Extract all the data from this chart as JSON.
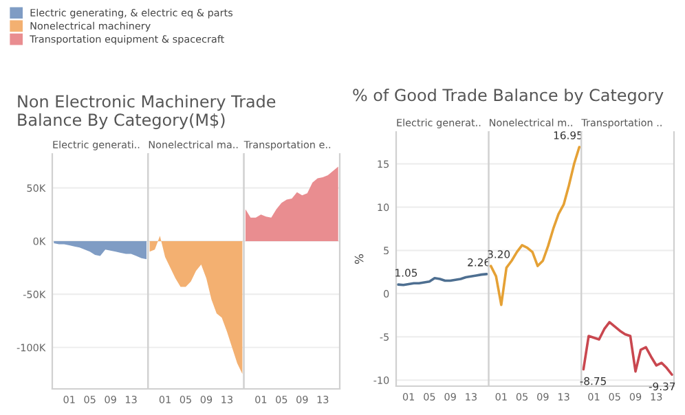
{
  "chart_data": [
    {
      "type": "area",
      "title": "Non Electronic Machinery Trade Balance By Category(M$)",
      "subtitle": "Electric generati..",
      "legend": "top",
      "grid": "y",
      "x": [
        1998,
        1999,
        2000,
        2001,
        2002,
        2003,
        2004,
        2005,
        2006,
        2007,
        2008,
        2009,
        2010,
        2011,
        2012,
        2013,
        2014,
        2015,
        2016
      ],
      "series": [
        {
          "name": "Electric generating, & electric eq & parts",
          "color": "#7f9cc4",
          "values": [
            -2000,
            -3000,
            -3000,
            -4000,
            -5000,
            -6000,
            -8000,
            -10000,
            -13000,
            -14000,
            -8000,
            -9000,
            -10000,
            -11000,
            -12000,
            -12000,
            -14000,
            -16000,
            -17000
          ]
        }
      ],
      "xlim": [
        1997.7,
        2016.3
      ],
      "xticks": [
        {
          "value": 2001,
          "label": "01"
        },
        {
          "value": 2005,
          "label": "05"
        },
        {
          "value": 2009,
          "label": "09"
        },
        {
          "value": 2013,
          "label": "13"
        }
      ],
      "ylim": [
        -139000,
        82000
      ],
      "yticks": [
        {
          "value": -100000,
          "label": "-100K"
        },
        {
          "value": -50000,
          "label": "-50K"
        },
        {
          "value": 0,
          "label": "0K"
        },
        {
          "value": 50000,
          "label": "50K"
        }
      ]
    },
    {
      "type": "area",
      "subtitle": "Nonelectrical ma..",
      "grid": "y",
      "tick_labels": "x",
      "x": [
        1998,
        1999,
        2000,
        2001,
        2002,
        2003,
        2004,
        2005,
        2006,
        2007,
        2008,
        2009,
        2010,
        2011,
        2012,
        2013,
        2014,
        2015,
        2016
      ],
      "series": [
        {
          "name": "Nonelectrical machinery",
          "color": "#f3b071",
          "values": [
            -10000,
            -8000,
            5000,
            -15000,
            -25000,
            -35000,
            -43000,
            -43000,
            -38000,
            -28000,
            -22000,
            -35000,
            -55000,
            -68000,
            -72000,
            -85000,
            -100000,
            -115000,
            -125000
          ]
        }
      ],
      "xlim": [
        1997.7,
        2016.3
      ],
      "xticks": [
        {
          "value": 2001,
          "label": "01"
        },
        {
          "value": 2005,
          "label": "05"
        },
        {
          "value": 2009,
          "label": "09"
        },
        {
          "value": 2013,
          "label": "13"
        }
      ],
      "ylim": [
        -139000,
        82000
      ],
      "yticks": [
        {
          "value": -100000,
          "label": null
        },
        {
          "value": -50000,
          "label": null
        },
        {
          "value": 0,
          "label": null
        },
        {
          "value": 50000,
          "label": null
        }
      ]
    },
    {
      "type": "area",
      "subtitle": "Transportation e..",
      "grid": "y",
      "tick_labels": "x",
      "x": [
        1998,
        1999,
        2000,
        2001,
        2002,
        2003,
        2004,
        2005,
        2006,
        2007,
        2008,
        2009,
        2010,
        2011,
        2012,
        2013,
        2014,
        2015,
        2016
      ],
      "series": [
        {
          "name": "Transportation equipment & spacecraft",
          "color": "#e98d90",
          "values": [
            30000,
            22000,
            22000,
            25000,
            23000,
            22000,
            30000,
            36000,
            39000,
            40000,
            46000,
            43000,
            45000,
            55000,
            59000,
            60000,
            62000,
            66000,
            70000
          ]
        }
      ],
      "xlim": [
        1997.7,
        2016.3
      ],
      "xticks": [
        {
          "value": 2001,
          "label": "01"
        },
        {
          "value": 2005,
          "label": "05"
        },
        {
          "value": 2009,
          "label": "09"
        },
        {
          "value": 2013,
          "label": "13"
        }
      ],
      "ylim": [
        -139000,
        82000
      ],
      "yticks": [
        {
          "value": -100000,
          "label": null
        },
        {
          "value": -50000,
          "label": null
        },
        {
          "value": 0,
          "label": null
        },
        {
          "value": 50000,
          "label": null
        }
      ]
    },
    {
      "type": "line",
      "title": "% of Good Trade Balance by Category",
      "subtitle": "Electric generat..",
      "ylabel": "%",
      "grid": "y",
      "x": [
        1999,
        2000,
        2001,
        2002,
        2003,
        2004,
        2005,
        2006,
        2007,
        2008,
        2009,
        2010,
        2011,
        2012,
        2013,
        2014,
        2015,
        2016
      ],
      "series": [
        {
          "color": "#4e6f91",
          "values": [
            1.05,
            1.0,
            1.1,
            1.2,
            1.2,
            1.3,
            1.4,
            1.8,
            1.7,
            1.5,
            1.5,
            1.6,
            1.7,
            1.9,
            2.0,
            2.1,
            2.2,
            2.26
          ],
          "value_labels": [
            "1.05",
            null,
            null,
            null,
            null,
            null,
            null,
            null,
            null,
            null,
            null,
            null,
            null,
            null,
            null,
            null,
            null,
            "2.26"
          ]
        }
      ],
      "xlim": [
        1998.6,
        2016.4
      ],
      "xticks": [
        {
          "value": 2001,
          "label": "01"
        },
        {
          "value": 2005,
          "label": "05"
        },
        {
          "value": 2009,
          "label": "09"
        },
        {
          "value": 2013,
          "label": "13"
        }
      ],
      "ylim": [
        -10.7,
        18.7
      ],
      "yticks": [
        -10,
        -5,
        0,
        5,
        10,
        15
      ]
    },
    {
      "type": "line",
      "subtitle": "Nonelectrical m..",
      "grid": "y",
      "tick_labels": "x",
      "x": [
        1999,
        2000,
        2001,
        2002,
        2003,
        2004,
        2005,
        2006,
        2007,
        2008,
        2009,
        2010,
        2011,
        2012,
        2013,
        2014,
        2015,
        2016
      ],
      "series": [
        {
          "color": "#e5a135",
          "values": [
            3.2,
            2.0,
            -1.3,
            3.0,
            3.8,
            4.8,
            5.6,
            5.3,
            4.8,
            3.2,
            3.8,
            5.5,
            7.5,
            9.2,
            10.3,
            12.5,
            15.0,
            16.95
          ],
          "value_labels": [
            "3.20",
            null,
            null,
            null,
            null,
            null,
            null,
            null,
            null,
            null,
            null,
            null,
            null,
            null,
            null,
            null,
            null,
            "16.95"
          ]
        }
      ],
      "xlim": [
        1998.6,
        2016.4
      ],
      "xticks": [
        {
          "value": 2001,
          "label": "01"
        },
        {
          "value": 2005,
          "label": "05"
        },
        {
          "value": 2009,
          "label": "09"
        },
        {
          "value": 2013,
          "label": "13"
        }
      ],
      "ylim": [
        -10.7,
        18.7
      ],
      "yticks": [
        {
          "value": -10,
          "label": null
        },
        {
          "value": -5,
          "label": null
        },
        {
          "value": 0,
          "label": null
        },
        {
          "value": 5,
          "label": null
        },
        {
          "value": 10,
          "label": null
        },
        {
          "value": 15,
          "label": null
        }
      ]
    },
    {
      "type": "line",
      "subtitle": "Transportation ..",
      "grid": "y",
      "tick_labels": "x",
      "x": [
        1999,
        2000,
        2001,
        2002,
        2003,
        2004,
        2005,
        2006,
        2007,
        2008,
        2009,
        2010,
        2011,
        2012,
        2013,
        2014,
        2015,
        2016
      ],
      "series": [
        {
          "color": "#c9474f",
          "values": [
            -8.75,
            -4.9,
            -5.1,
            -5.3,
            -4.1,
            -3.3,
            -3.8,
            -4.3,
            -4.7,
            -4.9,
            -9.0,
            -6.5,
            -6.2,
            -7.3,
            -8.3,
            -8.0,
            -8.6,
            -9.37
          ],
          "value_labels": [
            "-8.75",
            null,
            null,
            null,
            null,
            null,
            null,
            null,
            null,
            null,
            null,
            null,
            null,
            null,
            null,
            null,
            null,
            "-9.37"
          ]
        }
      ],
      "xlim": [
        1998.6,
        2016.4
      ],
      "xticks": [
        {
          "value": 2001,
          "label": "01"
        },
        {
          "value": 2005,
          "label": "05"
        },
        {
          "value": 2009,
          "label": "09"
        },
        {
          "value": 2013,
          "label": "13"
        }
      ],
      "ylim": [
        -10.7,
        18.7
      ],
      "yticks": [
        {
          "value": -10,
          "label": null
        },
        {
          "value": -5,
          "label": null
        },
        {
          "value": 0,
          "label": null
        },
        {
          "value": 5,
          "label": null
        },
        {
          "value": 10,
          "label": null
        },
        {
          "value": 15,
          "label": null
        }
      ]
    }
  ]
}
